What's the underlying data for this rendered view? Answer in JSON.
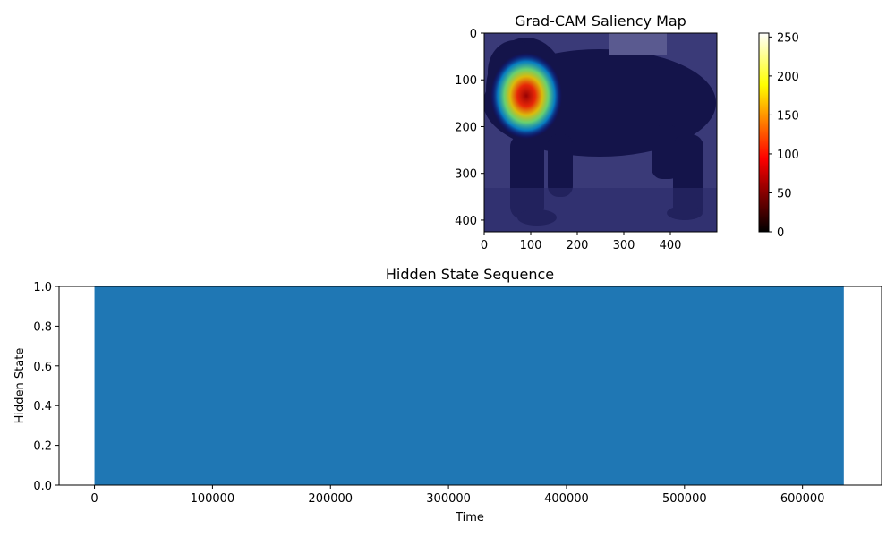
{
  "chart_data": [
    {
      "type": "heatmap",
      "title": "Grad-CAM Saliency Map",
      "image": "dark dog photo overlaid with blue tint; hotspot on the head",
      "image_width": 500,
      "image_height": 425,
      "xlim": [
        0,
        500
      ],
      "ylim": [
        425,
        0
      ],
      "x_ticks": [
        0,
        100,
        200,
        300,
        400
      ],
      "y_ticks": [
        0,
        100,
        200,
        300,
        400
      ],
      "hotspot": {
        "center": [
          90,
          135
        ],
        "radius_x": 75,
        "radius_y": 95
      },
      "colorbar": {
        "colormap": "hot",
        "range": [
          0,
          255
        ],
        "ticks": [
          0,
          50,
          100,
          150,
          200,
          250
        ]
      }
    },
    {
      "type": "area",
      "title": "Hidden State Sequence",
      "xlabel": "Time",
      "ylabel": "Hidden State",
      "x": [
        0,
        635000
      ],
      "y": [
        1.0,
        1.0
      ],
      "fill_to": 0,
      "xlim": [
        -30000,
        667000
      ],
      "ylim": [
        0.0,
        1.0
      ],
      "x_ticks": [
        0,
        100000,
        200000,
        300000,
        400000,
        500000,
        600000
      ],
      "y_ticks": [
        0.0,
        0.2,
        0.4,
        0.6,
        0.8,
        1.0
      ],
      "color": "#1f77b4"
    }
  ]
}
